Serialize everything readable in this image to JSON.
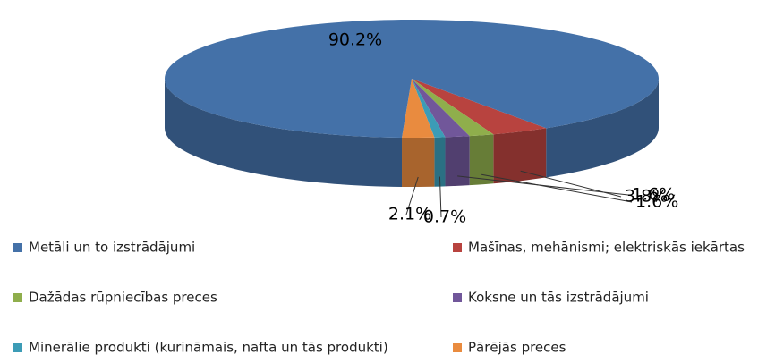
{
  "chart_data": {
    "type": "pie3d",
    "categories": [
      "Metāli un to izstrādājumi",
      "Mašīnas, mehānismi; elektriskās iekārtas",
      "Dažādas rūpniecības preces",
      "Koksne un tās izstrādājumi",
      "Minerālie produkti (kurināmais, nafta un tās produkti)",
      "Pārējās preces"
    ],
    "values": [
      90.2,
      3.8,
      1.6,
      1.6,
      0.7,
      2.1
    ],
    "value_labels": [
      "90.2%",
      "3.8%",
      "1.6%",
      "1.6%",
      "0.7%",
      "2.1%"
    ],
    "colors": [
      "#4471a8",
      "#b8433f",
      "#8fae4c",
      "#71579a",
      "#3c9cb6",
      "#e98b3f"
    ],
    "legend": "bottom"
  }
}
